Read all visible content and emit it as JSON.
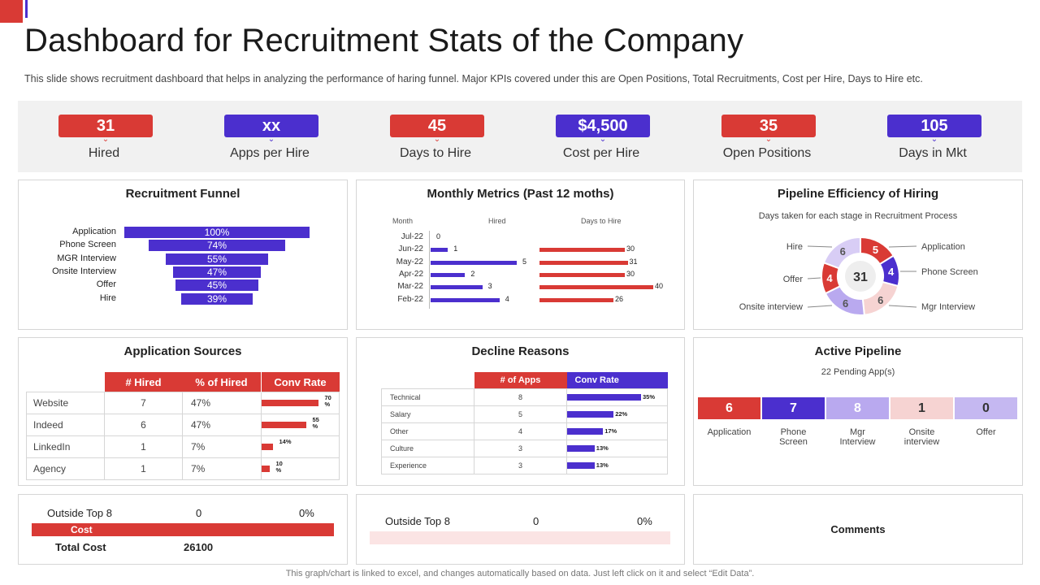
{
  "header": {
    "title": "Dashboard for Recruitment Stats of the Company",
    "subtitle": "This slide shows recruitment dashboard that helps in analyzing the performance  of haring funnel.  Major KPIs covered  under this are Open Positions, Total Recruitments, Cost per Hire, Days to Hire  etc."
  },
  "colors": {
    "red": "#d93a35",
    "purple": "#4b2fce",
    "light_purple": "#b9a9ef",
    "light_pink": "#f6d3d2",
    "pale_purple": "#d8cdf5"
  },
  "kpis": [
    {
      "value": "31",
      "label": "Hired",
      "color": "red"
    },
    {
      "value": "xx",
      "label": "Apps per Hire",
      "color": "purple"
    },
    {
      "value": "45",
      "label": "Days to Hire",
      "color": "red"
    },
    {
      "value": "$4,500",
      "label": "Cost per Hire",
      "color": "purple"
    },
    {
      "value": "35",
      "label": "Open Positions",
      "color": "red"
    },
    {
      "value": "105",
      "label": "Days in Mkt",
      "color": "purple"
    }
  ],
  "funnel": {
    "title": "Recruitment Funnel",
    "stages": [
      "Application",
      "Phone Screen",
      "MGR Interview",
      "Onsite Interview",
      "Offer",
      "Hire"
    ],
    "values": [
      "100%",
      "74%",
      "55%",
      "47%",
      "45%",
      "39%"
    ]
  },
  "monthly": {
    "title": "Monthly Metrics (Past 12 moths)",
    "col_month": "Month",
    "col_hired": "Hired",
    "col_days": "Days to Hire",
    "months": [
      "Jul-22",
      "Jun-22",
      "May-22",
      "Apr-22",
      "Mar-22",
      "Feb-22"
    ],
    "hired": [
      "0",
      "1",
      "5",
      "2",
      "3",
      "4"
    ],
    "days": [
      "",
      "30",
      "31",
      "30",
      "40",
      "26"
    ]
  },
  "chart_data": [
    {
      "type": "bar",
      "title": "Recruitment Funnel",
      "categories": [
        "Application",
        "Phone Screen",
        "MGR Interview",
        "Onsite Interview",
        "Offer",
        "Hire"
      ],
      "values": [
        100,
        74,
        55,
        47,
        45,
        39
      ],
      "unit": "%"
    },
    {
      "type": "bar",
      "title": "Monthly Metrics (Past 12 moths)",
      "categories": [
        "Jul-22",
        "Jun-22",
        "May-22",
        "Apr-22",
        "Mar-22",
        "Feb-22"
      ],
      "series": [
        {
          "name": "Hired",
          "values": [
            0,
            1,
            5,
            2,
            3,
            4
          ]
        },
        {
          "name": "Days to Hire",
          "values": [
            null,
            30,
            31,
            30,
            40,
            26
          ]
        }
      ]
    },
    {
      "type": "pie",
      "title": "Pipeline Efficiency of Hiring",
      "subtitle": "Days taken  for each stage in Recruitment Process",
      "center_value": 31,
      "categories": [
        "Application",
        "Phone Screen",
        "Mgr Interview",
        "Onsite interview",
        "Offer",
        "Hire"
      ],
      "values": [
        5,
        4,
        6,
        6,
        4,
        6
      ]
    },
    {
      "type": "table",
      "title": "Application Sources",
      "columns": [
        "# Hired",
        "% of Hired",
        "Conv Rate"
      ],
      "rows": [
        "Website",
        "Indeed",
        "LinkedIn",
        "Agency"
      ],
      "hired": [
        7,
        6,
        1,
        1
      ],
      "pct_hired": [
        47,
        47,
        7,
        7
      ],
      "conv_rate": [
        70,
        55,
        14,
        10
      ]
    },
    {
      "type": "table",
      "title": "Decline Reasons",
      "columns": [
        "# of Apps",
        "Conv Rate"
      ],
      "rows": [
        "Technical",
        "Salary",
        "Other",
        "Culture",
        "Experience"
      ],
      "apps": [
        8,
        5,
        4,
        3,
        3
      ],
      "conv_rate": [
        35,
        22,
        17,
        13,
        13
      ]
    },
    {
      "type": "bar",
      "title": "Active Pipeline",
      "categories": [
        "Application",
        "Phone Screen",
        "Mgr Interview",
        "Onsite interview",
        "Offer"
      ],
      "values": [
        6,
        7,
        8,
        1,
        0
      ]
    }
  ],
  "pipeline": {
    "title": "Pipeline Efficiency of Hiring",
    "subtitle": "Days taken  for each stage in Recruitment Process",
    "center": "31",
    "segments": [
      {
        "label": "Application",
        "value": "5",
        "color": "#d93a35",
        "text_color": "#ffffff"
      },
      {
        "label": "Phone Screen",
        "value": "4",
        "color": "#4b2fce",
        "text_color": "#ffffff"
      },
      {
        "label": "Mgr Interview",
        "value": "6",
        "color": "#f6d3d2",
        "text_color": "#555555"
      },
      {
        "label": "Onsite interview",
        "value": "6",
        "color": "#b9a9ef",
        "text_color": "#555555"
      },
      {
        "label": "Offer",
        "value": "4",
        "color": "#d93a35",
        "text_color": "#ffffff"
      },
      {
        "label": "Hire",
        "value": "6",
        "color": "#d8cdf5",
        "text_color": "#555555"
      }
    ]
  },
  "sources": {
    "title": "Application Sources",
    "headers": [
      "# Hired",
      "% of Hired",
      "Conv Rate"
    ],
    "rows": [
      {
        "name": "Website",
        "hired": "7",
        "pct": "47%",
        "conv": "70 %",
        "conv_num": 70
      },
      {
        "name": "Indeed",
        "hired": "6",
        "pct": "47%",
        "conv": "55 %",
        "conv_num": 55
      },
      {
        "name": "LinkedIn",
        "hired": "1",
        "pct": "7%",
        "conv": "14%",
        "conv_num": 14
      },
      {
        "name": "Agency",
        "hired": "1",
        "pct": "7%",
        "conv": "10 %",
        "conv_num": 10
      }
    ]
  },
  "decline": {
    "title": "Decline Reasons",
    "headers": [
      "# of Apps",
      "Conv Rate"
    ],
    "rows": [
      {
        "name": "Technical",
        "apps": "8",
        "conv": "35%",
        "conv_num": 35
      },
      {
        "name": "Salary",
        "apps": "5",
        "conv": "22%",
        "conv_num": 22
      },
      {
        "name": "Other",
        "apps": "4",
        "conv": "17%",
        "conv_num": 17
      },
      {
        "name": "Culture",
        "apps": "3",
        "conv": "13%",
        "conv_num": 13
      },
      {
        "name": "Experience",
        "apps": "3",
        "conv": "13%",
        "conv_num": 13
      }
    ]
  },
  "active": {
    "title": "Active Pipeline",
    "subtitle": "22 Pending App(s)",
    "segments": [
      {
        "value": "6",
        "label": "Application",
        "color": "#d93a35",
        "text_color": "#ffffff"
      },
      {
        "value": "7",
        "label": "Phone Screen",
        "color": "#4b2fce",
        "text_color": "#ffffff"
      },
      {
        "value": "8",
        "label": "Mgr Interview",
        "color": "#b9a9ef",
        "text_color": "#ffffff"
      },
      {
        "value": "1",
        "label": "Onsite interview",
        "color": "#f6d3d2",
        "text_color": "#333333"
      },
      {
        "value": "0",
        "label": "Offer",
        "color": "#c5b8f1",
        "text_color": "#333333"
      }
    ]
  },
  "cost": {
    "outside_label": "Outside Top 8",
    "outside_count": "0",
    "outside_pct": "0%",
    "cost_label": "Cost",
    "total_label": "Total Cost",
    "total_value": "26100"
  },
  "decline_footer": {
    "outside_label": "Outside Top 8",
    "outside_count": "0",
    "outside_pct": "0%"
  },
  "comments": {
    "label": "Comments"
  },
  "footer": {
    "note": "This graph/chart is linked to excel,  and changes automatically based on data. Just left click on it and select “Edit Data”."
  }
}
